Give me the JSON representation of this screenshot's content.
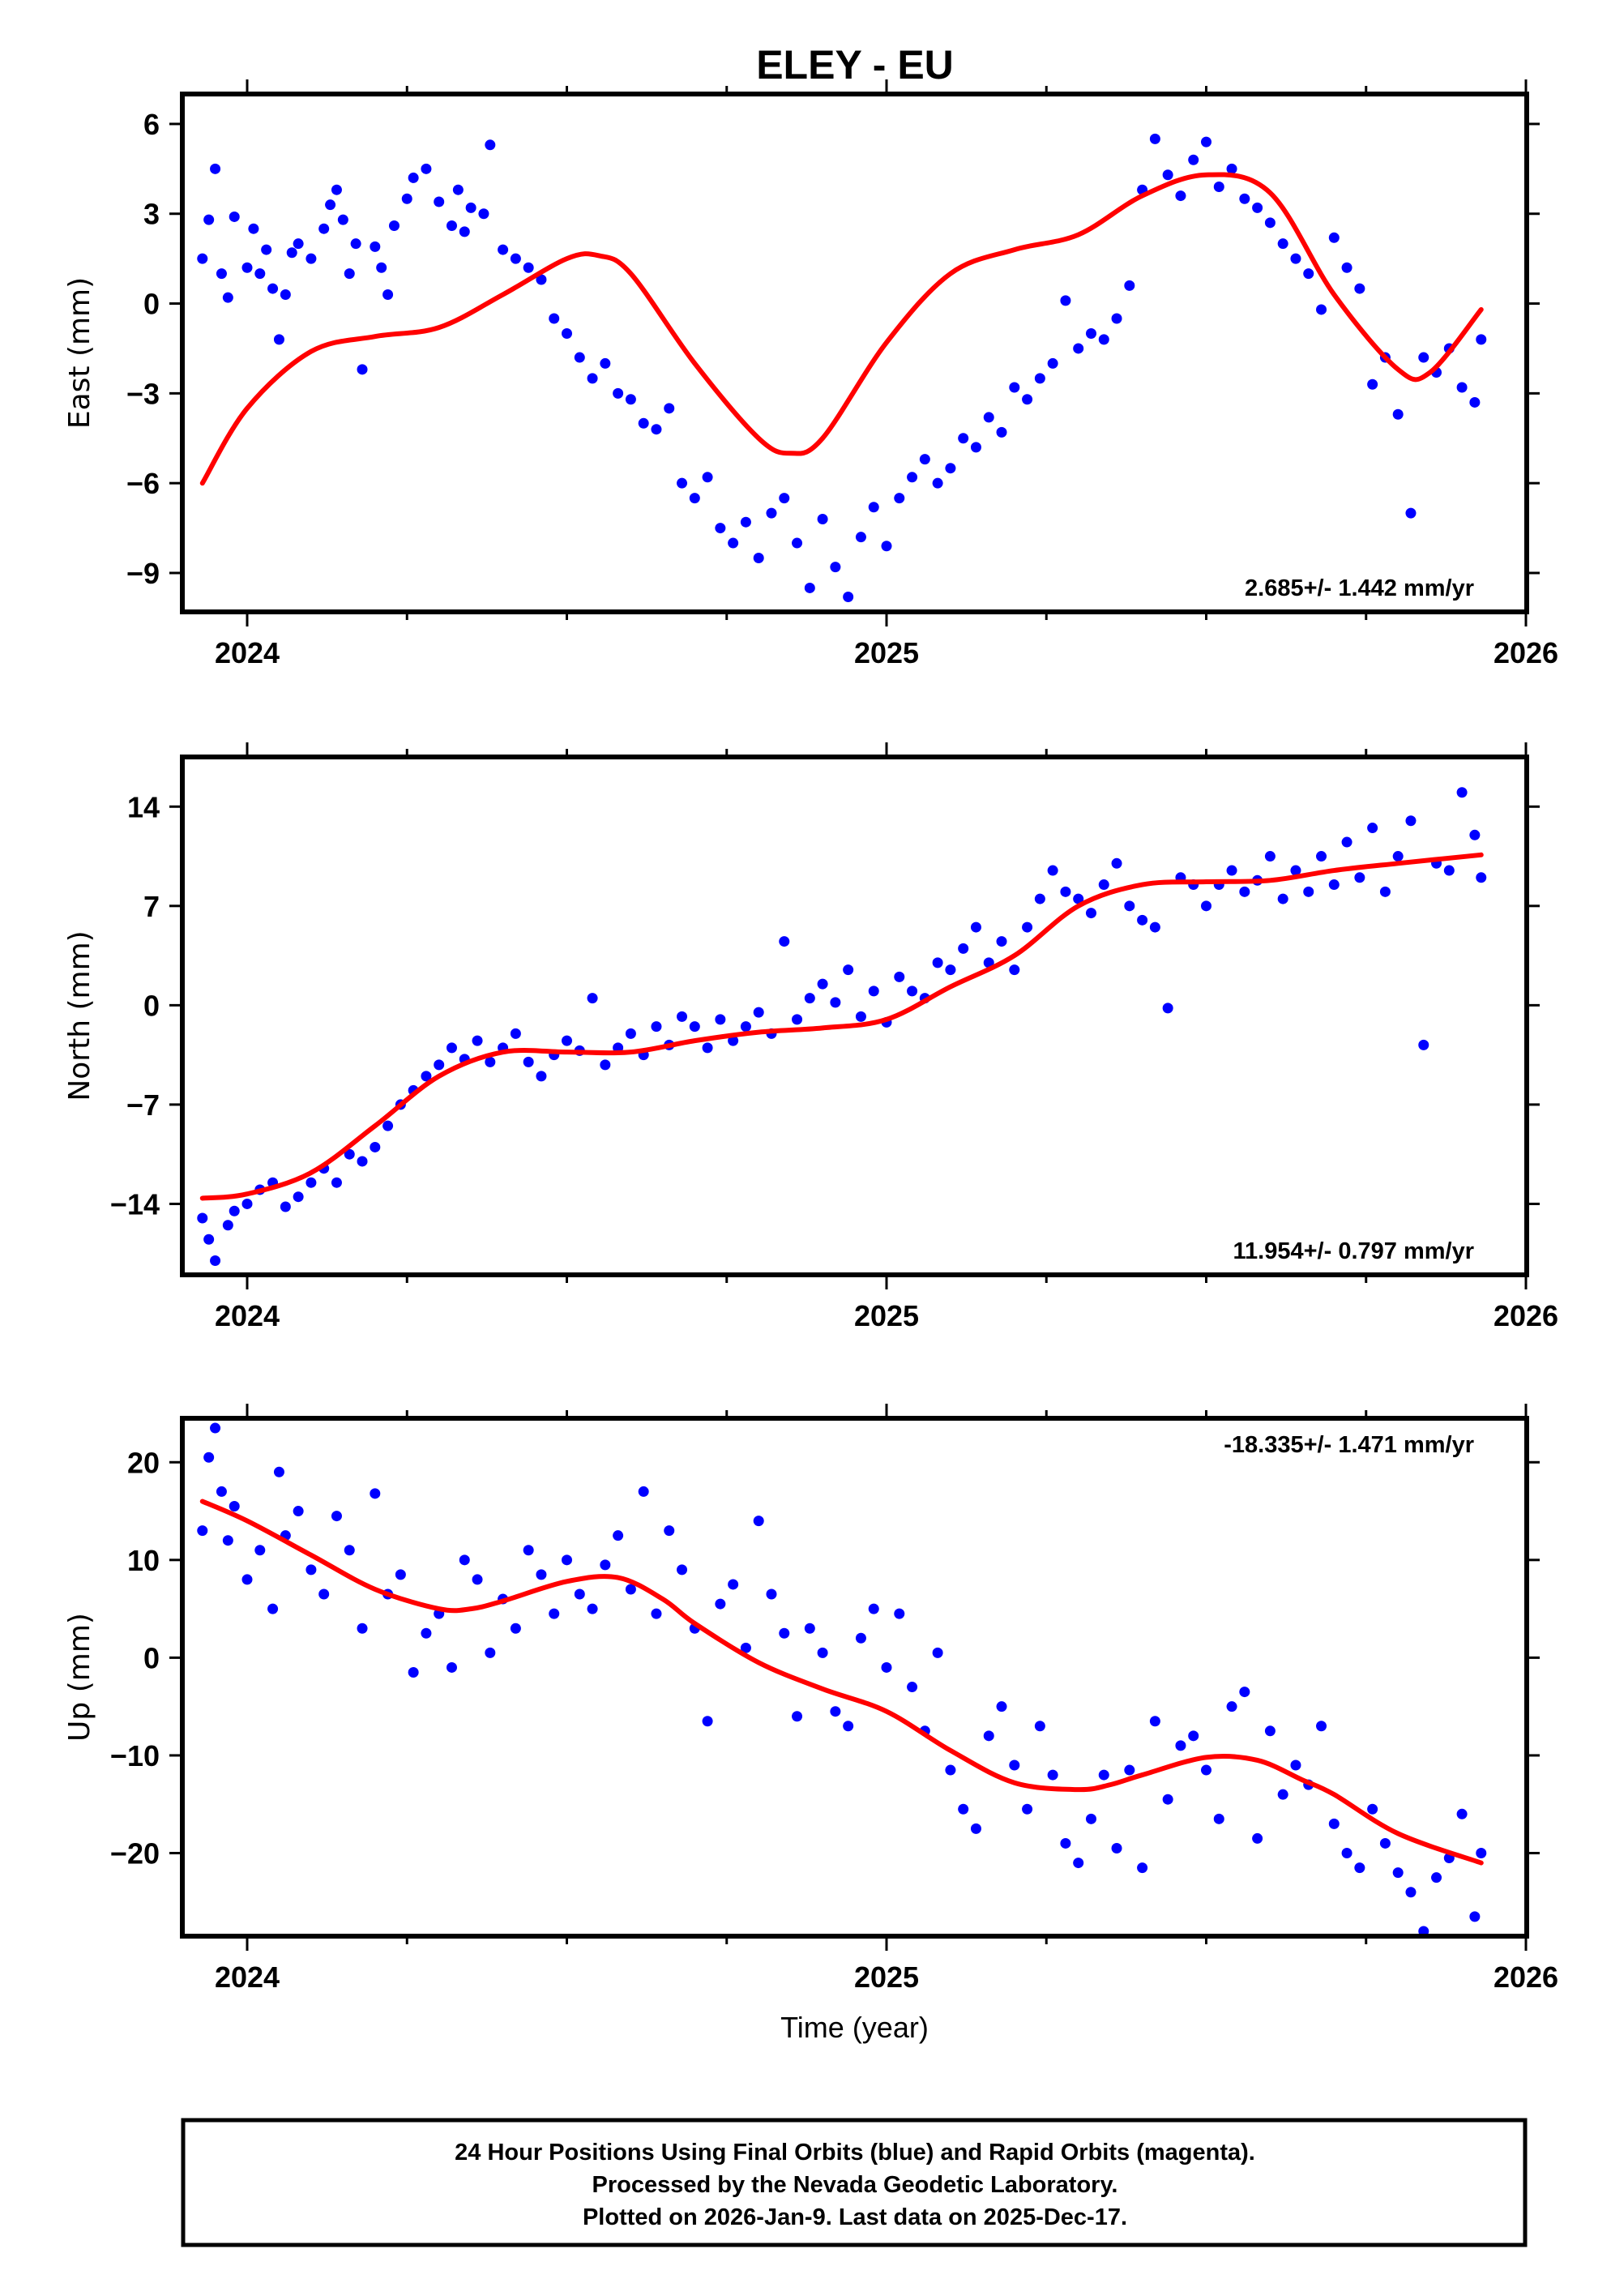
{
  "title": "ELEY - EU",
  "footer": {
    "lines": [
      "24 Hour Positions Using Final Orbits (blue) and Rapid Orbits (magenta).",
      "Processed by the Nevada Geodetic Laboratory.",
      "Plotted on 2026-Jan-9. Last data on 2025-Dec-17."
    ]
  },
  "colors": {
    "points": "#0000ff",
    "fit": "#ff0000",
    "frame": "#000000"
  },
  "chart_data": [
    {
      "type": "scatter",
      "panel": "east",
      "title": "ELEY - EU",
      "xlabel": "",
      "ylabel": "East (mm)",
      "xlim": [
        2023.9,
        2026.0
      ],
      "ylim": [
        -10.3,
        7.0
      ],
      "xticks": [
        2024,
        2025,
        2026
      ],
      "xtick_labels": [
        "2024",
        "2025",
        "2026"
      ],
      "yticks": [
        6,
        3,
        0,
        -3,
        -6,
        -9
      ],
      "ytick_labels": [
        "6",
        "3",
        "0",
        "−3",
        "−6",
        "−9"
      ],
      "rate_label": "2.685+/- 1.442 mm/yr",
      "rate_position": "bottom-right",
      "grid": false,
      "fit_curve": {
        "x": [
          2023.93,
          2024.0,
          2024.1,
          2024.2,
          2024.3,
          2024.4,
          2024.5,
          2024.55,
          2024.6,
          2024.7,
          2024.8,
          2024.85,
          2024.9,
          2025.0,
          2025.1,
          2025.2,
          2025.3,
          2025.4,
          2025.5,
          2025.6,
          2025.7,
          2025.8,
          2025.85,
          2025.93
        ],
        "y": [
          -6.0,
          -3.5,
          -1.6,
          -1.1,
          -0.8,
          0.3,
          1.5,
          1.6,
          1.0,
          -2.0,
          -4.5,
          -5.0,
          -4.5,
          -1.3,
          1.0,
          1.8,
          2.3,
          3.6,
          4.3,
          3.7,
          0.3,
          -2.2,
          -2.3,
          -0.2
        ]
      },
      "points": {
        "x": [
          2023.93,
          2023.94,
          2023.95,
          2023.96,
          2023.97,
          2023.98,
          2024.0,
          2024.01,
          2024.02,
          2024.03,
          2024.04,
          2024.05,
          2024.06,
          2024.07,
          2024.08,
          2024.1,
          2024.12,
          2024.13,
          2024.14,
          2024.15,
          2024.16,
          2024.17,
          2024.18,
          2024.2,
          2024.21,
          2024.22,
          2024.23,
          2024.25,
          2024.26,
          2024.28,
          2024.3,
          2024.32,
          2024.33,
          2024.34,
          2024.35,
          2024.37,
          2024.38,
          2024.4,
          2024.42,
          2024.44,
          2024.46,
          2024.48,
          2024.5,
          2024.52,
          2024.54,
          2024.56,
          2024.58,
          2024.6,
          2024.62,
          2024.64,
          2024.66,
          2024.68,
          2024.7,
          2024.72,
          2024.74,
          2024.76,
          2024.78,
          2024.8,
          2024.82,
          2024.84,
          2024.86,
          2024.88,
          2024.9,
          2024.92,
          2024.94,
          2024.96,
          2024.98,
          2025.0,
          2025.02,
          2025.04,
          2025.06,
          2025.08,
          2025.1,
          2025.12,
          2025.14,
          2025.16,
          2025.18,
          2025.2,
          2025.22,
          2025.24,
          2025.26,
          2025.28,
          2025.3,
          2025.32,
          2025.34,
          2025.36,
          2025.38,
          2025.4,
          2025.42,
          2025.44,
          2025.46,
          2025.48,
          2025.5,
          2025.52,
          2025.54,
          2025.56,
          2025.58,
          2025.6,
          2025.62,
          2025.64,
          2025.66,
          2025.68,
          2025.7,
          2025.72,
          2025.74,
          2025.76,
          2025.78,
          2025.8,
          2025.82,
          2025.84,
          2025.86,
          2025.88,
          2025.9,
          2025.92,
          2025.93
        ],
        "y": [
          1.5,
          2.8,
          4.5,
          1.0,
          0.2,
          2.9,
          1.2,
          2.5,
          1.0,
          1.8,
          0.5,
          -1.2,
          0.3,
          1.7,
          2.0,
          1.5,
          2.5,
          3.3,
          3.8,
          2.8,
          1.0,
          2.0,
          -2.2,
          1.9,
          1.2,
          0.3,
          2.6,
          3.5,
          4.2,
          4.5,
          3.4,
          2.6,
          3.8,
          2.4,
          3.2,
          3.0,
          5.3,
          1.8,
          1.5,
          1.2,
          0.8,
          -0.5,
          -1.0,
          -1.8,
          -2.5,
          -2.0,
          -3.0,
          -3.2,
          -4.0,
          -4.2,
          -3.5,
          -6.0,
          -6.5,
          -5.8,
          -7.5,
          -8.0,
          -7.3,
          -8.5,
          -7.0,
          -6.5,
          -8.0,
          -9.5,
          -7.2,
          -8.8,
          -9.8,
          -7.8,
          -6.8,
          -8.1,
          -6.5,
          -5.8,
          -5.2,
          -6.0,
          -5.5,
          -4.5,
          -4.8,
          -3.8,
          -4.3,
          -2.8,
          -3.2,
          -2.5,
          -2.0,
          0.1,
          -1.5,
          -1.0,
          -1.2,
          -0.5,
          0.6,
          3.8,
          5.5,
          4.3,
          3.6,
          4.8,
          5.4,
          3.9,
          4.5,
          3.5,
          3.2,
          2.7,
          2.0,
          1.5,
          1.0,
          -0.2,
          2.2,
          1.2,
          0.5,
          -2.7,
          -1.8,
          -3.7,
          -7.0,
          -1.8,
          -2.3,
          -1.5,
          -2.8,
          -3.3,
          -1.2
        ]
      }
    },
    {
      "type": "scatter",
      "panel": "north",
      "xlabel": "",
      "ylabel": "North (mm)",
      "xlim": [
        2023.9,
        2026.0
      ],
      "ylim": [
        -19.0,
        17.5
      ],
      "xticks": [
        2024,
        2025,
        2026
      ],
      "xtick_labels": [
        "2024",
        "2025",
        "2026"
      ],
      "yticks": [
        14,
        7,
        0,
        -7,
        -14
      ],
      "ytick_labels": [
        "14",
        "7",
        "0",
        "−7",
        "−14"
      ],
      "rate_label": "11.954+/- 0.797 mm/yr",
      "rate_position": "bottom-right",
      "grid": false,
      "fit_curve": {
        "x": [
          2023.93,
          2024.0,
          2024.1,
          2024.2,
          2024.3,
          2024.4,
          2024.5,
          2024.6,
          2024.7,
          2024.8,
          2024.9,
          2025.0,
          2025.1,
          2025.2,
          2025.3,
          2025.4,
          2025.5,
          2025.6,
          2025.7,
          2025.8,
          2025.93
        ],
        "y": [
          -13.6,
          -13.3,
          -11.8,
          -8.5,
          -5.0,
          -3.3,
          -3.3,
          -3.3,
          -2.5,
          -1.9,
          -1.6,
          -1.0,
          1.3,
          3.5,
          7.0,
          8.5,
          8.7,
          8.8,
          9.5,
          10.0,
          10.6
        ]
      },
      "points": {
        "x": [
          2023.93,
          2023.94,
          2023.95,
          2023.97,
          2023.98,
          2024.0,
          2024.02,
          2024.04,
          2024.06,
          2024.08,
          2024.1,
          2024.12,
          2024.14,
          2024.16,
          2024.18,
          2024.2,
          2024.22,
          2024.24,
          2024.26,
          2024.28,
          2024.3,
          2024.32,
          2024.34,
          2024.36,
          2024.38,
          2024.4,
          2024.42,
          2024.44,
          2024.46,
          2024.48,
          2024.5,
          2024.52,
          2024.54,
          2024.56,
          2024.58,
          2024.6,
          2024.62,
          2024.64,
          2024.66,
          2024.68,
          2024.7,
          2024.72,
          2024.74,
          2024.76,
          2024.78,
          2024.8,
          2024.82,
          2024.84,
          2024.86,
          2024.88,
          2024.9,
          2024.92,
          2024.94,
          2024.96,
          2024.98,
          2025.0,
          2025.02,
          2025.04,
          2025.06,
          2025.08,
          2025.1,
          2025.12,
          2025.14,
          2025.16,
          2025.18,
          2025.2,
          2025.22,
          2025.24,
          2025.26,
          2025.28,
          2025.3,
          2025.32,
          2025.34,
          2025.36,
          2025.38,
          2025.4,
          2025.42,
          2025.44,
          2025.46,
          2025.48,
          2025.5,
          2025.52,
          2025.54,
          2025.56,
          2025.58,
          2025.6,
          2025.62,
          2025.64,
          2025.66,
          2025.68,
          2025.7,
          2025.72,
          2025.74,
          2025.76,
          2025.78,
          2025.8,
          2025.82,
          2025.84,
          2025.86,
          2025.88,
          2025.9,
          2025.92,
          2025.93
        ],
        "y": [
          -15.0,
          -16.5,
          -18.0,
          -15.5,
          -14.5,
          -14.0,
          -13.0,
          -12.5,
          -14.2,
          -13.5,
          -12.5,
          -11.5,
          -12.5,
          -10.5,
          -11.0,
          -10.0,
          -8.5,
          -7.0,
          -6.0,
          -5.0,
          -4.2,
          -3.0,
          -3.8,
          -2.5,
          -4.0,
          -3.0,
          -2.0,
          -4.0,
          -5.0,
          -3.5,
          -2.5,
          -3.2,
          0.5,
          -4.2,
          -3.0,
          -2.0,
          -3.5,
          -1.5,
          -2.8,
          -0.8,
          -1.5,
          -3.0,
          -1.0,
          -2.5,
          -1.5,
          -0.5,
          -2.0,
          4.5,
          -1.0,
          0.5,
          1.5,
          0.2,
          2.5,
          -0.8,
          1.0,
          -1.2,
          2.0,
          1.0,
          0.5,
          3.0,
          2.5,
          4.0,
          5.5,
          3.0,
          4.5,
          2.5,
          5.5,
          7.5,
          9.5,
          8.0,
          7.5,
          6.5,
          8.5,
          10.0,
          7.0,
          6.0,
          5.5,
          -0.2,
          9.0,
          8.5,
          7.0,
          8.5,
          9.5,
          8.0,
          8.8,
          10.5,
          7.5,
          9.5,
          8.0,
          10.5,
          8.5,
          11.5,
          9.0,
          12.5,
          8.0,
          10.5,
          13.0,
          -2.8,
          10.0,
          9.5,
          15.0,
          12.0,
          9.0
        ]
      }
    },
    {
      "type": "scatter",
      "panel": "up",
      "xlabel": "Time (year)",
      "ylabel": "Up (mm)",
      "xlim": [
        2023.9,
        2026.0
      ],
      "ylim": [
        -28.5,
        24.5
      ],
      "xticks": [
        2024,
        2025,
        2026
      ],
      "xtick_labels": [
        "2024",
        "2025",
        "2026"
      ],
      "yticks": [
        20,
        10,
        0,
        -10,
        -20
      ],
      "ytick_labels": [
        "20",
        "10",
        "0",
        "−10",
        "−20"
      ],
      "rate_label": "-18.335+/- 1.471 mm/yr",
      "rate_position": "top-right",
      "grid": false,
      "fit_curve": {
        "x": [
          2023.93,
          2024.0,
          2024.1,
          2024.2,
          2024.3,
          2024.35,
          2024.4,
          2024.5,
          2024.58,
          2024.65,
          2024.7,
          2024.8,
          2024.9,
          2025.0,
          2025.1,
          2025.2,
          2025.3,
          2025.35,
          2025.4,
          2025.5,
          2025.58,
          2025.65,
          2025.7,
          2025.8,
          2025.93
        ],
        "y": [
          16.0,
          14.0,
          10.5,
          7.0,
          5.0,
          5.0,
          5.8,
          7.8,
          8.2,
          6.0,
          3.5,
          -0.5,
          -3.2,
          -5.5,
          -9.5,
          -12.8,
          -13.5,
          -13.0,
          -12.0,
          -10.2,
          -10.5,
          -12.5,
          -14.0,
          -18.0,
          -21.0
        ]
      },
      "points": {
        "x": [
          2023.93,
          2023.94,
          2023.95,
          2023.96,
          2023.97,
          2023.98,
          2024.0,
          2024.02,
          2024.04,
          2024.05,
          2024.06,
          2024.08,
          2024.1,
          2024.12,
          2024.14,
          2024.16,
          2024.18,
          2024.2,
          2024.22,
          2024.24,
          2024.26,
          2024.28,
          2024.3,
          2024.32,
          2024.34,
          2024.36,
          2024.38,
          2024.4,
          2024.42,
          2024.44,
          2024.46,
          2024.48,
          2024.5,
          2024.52,
          2024.54,
          2024.56,
          2024.58,
          2024.6,
          2024.62,
          2024.64,
          2024.66,
          2024.68,
          2024.7,
          2024.72,
          2024.74,
          2024.76,
          2024.78,
          2024.8,
          2024.82,
          2024.84,
          2024.86,
          2024.88,
          2024.9,
          2024.92,
          2024.94,
          2024.96,
          2024.98,
          2025.0,
          2025.02,
          2025.04,
          2025.06,
          2025.08,
          2025.1,
          2025.12,
          2025.14,
          2025.16,
          2025.18,
          2025.2,
          2025.22,
          2025.24,
          2025.26,
          2025.28,
          2025.3,
          2025.32,
          2025.34,
          2025.36,
          2025.38,
          2025.4,
          2025.42,
          2025.44,
          2025.46,
          2025.48,
          2025.5,
          2025.52,
          2025.54,
          2025.56,
          2025.58,
          2025.6,
          2025.62,
          2025.64,
          2025.66,
          2025.68,
          2025.7,
          2025.72,
          2025.74,
          2025.76,
          2025.78,
          2025.8,
          2025.82,
          2025.84,
          2025.86,
          2025.88,
          2025.9,
          2025.92,
          2025.93
        ],
        "y": [
          13.0,
          20.5,
          23.5,
          17.0,
          12.0,
          15.5,
          8.0,
          11.0,
          5.0,
          19.0,
          12.5,
          15.0,
          9.0,
          6.5,
          14.5,
          11.0,
          3.0,
          16.8,
          6.5,
          8.5,
          -1.5,
          2.5,
          4.5,
          -1.0,
          10.0,
          8.0,
          0.5,
          6.0,
          3.0,
          11.0,
          8.5,
          4.5,
          10.0,
          6.5,
          5.0,
          9.5,
          12.5,
          7.0,
          17.0,
          4.5,
          13.0,
          9.0,
          3.0,
          -6.5,
          5.5,
          7.5,
          1.0,
          14.0,
          6.5,
          2.5,
          -6.0,
          3.0,
          0.5,
          -5.5,
          -7.0,
          2.0,
          5.0,
          -1.0,
          4.5,
          -3.0,
          -7.5,
          0.5,
          -11.5,
          -15.5,
          -17.5,
          -8.0,
          -5.0,
          -11.0,
          -15.5,
          -7.0,
          -12.0,
          -19.0,
          -21.0,
          -16.5,
          -12.0,
          -19.5,
          -11.5,
          -21.5,
          -6.5,
          -14.5,
          -9.0,
          -8.0,
          -11.5,
          -16.5,
          -5.0,
          -3.5,
          -18.5,
          -7.5,
          -14.0,
          -11.0,
          -13.0,
          -7.0,
          -17.0,
          -20.0,
          -21.5,
          -15.5,
          -19.0,
          -22.0,
          -24.0,
          -28.0,
          -22.5,
          -20.5,
          -16.0,
          -26.5,
          -20.0
        ]
      }
    }
  ]
}
